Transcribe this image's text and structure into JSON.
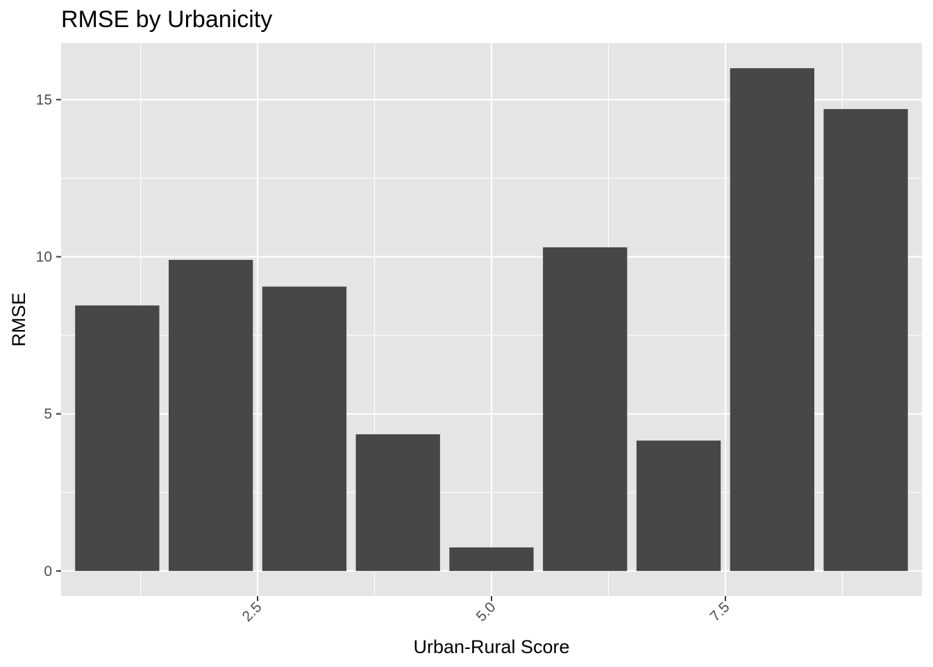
{
  "chart_data": {
    "type": "bar",
    "title": "RMSE by Urbanicity",
    "xlabel": "Urban-Rural Score",
    "ylabel": "RMSE",
    "x": [
      1,
      2,
      3,
      4,
      5,
      6,
      7,
      8,
      9
    ],
    "values": [
      8.45,
      9.9,
      9.05,
      4.35,
      0.75,
      10.3,
      4.15,
      16.0,
      14.7
    ],
    "xlim": [
      0.4,
      9.6
    ],
    "ylim": [
      -0.8,
      16.8
    ],
    "xticks": [
      2.5,
      5.0,
      7.5
    ],
    "xtick_labels": [
      "2.5",
      "5.0",
      "7.5"
    ],
    "yticks": [
      0,
      5,
      10,
      15
    ],
    "ytick_labels": [
      "0",
      "5",
      "10",
      "15"
    ],
    "bar_width": 0.9,
    "grid": true,
    "bar_color": "#474747",
    "panel_color": "#e5e5e5",
    "grid_color": "#ffffff"
  }
}
